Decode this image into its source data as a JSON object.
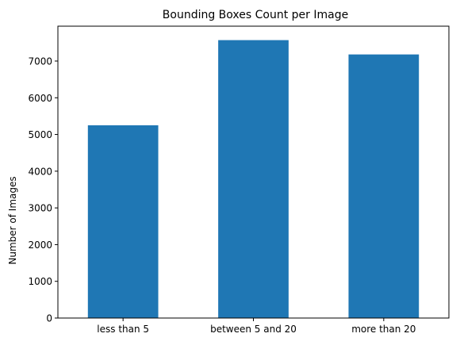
{
  "chart_data": {
    "type": "bar",
    "title": "Bounding Boxes Count per Image",
    "xlabel": "",
    "ylabel": "Number of Images",
    "categories": [
      "less than 5",
      "between 5 and 20",
      "more than 20"
    ],
    "values": [
      5250,
      7570,
      7180
    ],
    "yticks": [
      0,
      1000,
      2000,
      3000,
      4000,
      5000,
      6000,
      7000
    ],
    "ylim": [
      0,
      7950
    ],
    "bar_color": "#1f77b4",
    "grid": false,
    "legend": "none"
  }
}
